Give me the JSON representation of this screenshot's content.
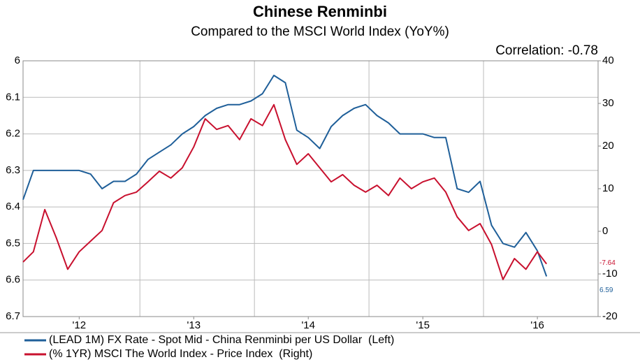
{
  "chart_data": {
    "type": "line",
    "title": "Chinese Renminbi",
    "subtitle": "Compared to the MSCI World Index (YoY%)",
    "annotation": "Correlation: -0.78",
    "x": [
      2011.51,
      2011.6,
      2011.7,
      2011.8,
      2011.9,
      2012.0,
      2012.1,
      2012.2,
      2012.3,
      2012.4,
      2012.5,
      2012.6,
      2012.7,
      2012.8,
      2012.9,
      2013.0,
      2013.1,
      2013.2,
      2013.3,
      2013.4,
      2013.5,
      2013.6,
      2013.7,
      2013.8,
      2013.9,
      2014.0,
      2014.1,
      2014.2,
      2014.3,
      2014.4,
      2014.5,
      2014.6,
      2014.7,
      2014.8,
      2014.9,
      2015.0,
      2015.1,
      2015.2,
      2015.3,
      2015.4,
      2015.5,
      2015.6,
      2015.7,
      2015.8,
      2015.9,
      2016.0,
      2016.08
    ],
    "xlim": [
      2011.51,
      2016.53
    ],
    "xticks": [
      {
        "value": 2012,
        "label": "'12"
      },
      {
        "value": 2013,
        "label": "'13"
      },
      {
        "value": 2014,
        "label": "'14"
      },
      {
        "value": 2015,
        "label": "'15"
      },
      {
        "value": 2016,
        "label": "'16"
      }
    ],
    "ylim": [
      6.7,
      6
    ],
    "yticks": [
      6,
      6.1,
      6.2,
      6.3,
      6.4,
      6.5,
      6.6,
      6.7
    ],
    "y2lim": [
      -20,
      40
    ],
    "y2ticks": [
      40,
      30,
      20,
      10,
      0,
      -10,
      -20
    ],
    "grid": true,
    "legend": "bottom",
    "series": [
      {
        "name": "(LEAD 1M) FX Rate - Spot Mid - China Renminbi per US Dollar  (Left)",
        "color": "#1f5f99",
        "end_label": "6.59",
        "values": [
          6.38,
          6.3,
          6.3,
          6.3,
          6.3,
          6.3,
          6.31,
          6.35,
          6.33,
          6.33,
          6.31,
          6.27,
          6.25,
          6.23,
          6.2,
          6.18,
          6.15,
          6.13,
          6.12,
          6.12,
          6.11,
          6.09,
          6.04,
          6.06,
          6.19,
          6.21,
          6.24,
          6.18,
          6.15,
          6.13,
          6.12,
          6.15,
          6.17,
          6.2,
          6.2,
          6.2,
          6.21,
          6.21,
          6.35,
          6.36,
          6.33,
          6.45,
          6.5,
          6.51,
          6.47,
          6.52,
          6.59
        ]
      },
      {
        "name": "(% 1YR) MSCI The World Index - Price Index  (Right)",
        "color": "#c8102e",
        "axis": "y2",
        "end_label": "-7.64",
        "values": [
          -7.2,
          -4.8,
          5.1,
          -1.5,
          -8.9,
          -4.8,
          -2.3,
          0.2,
          6.7,
          8.4,
          9.2,
          11.6,
          14.1,
          12.5,
          14.9,
          19.8,
          26.4,
          23.9,
          24.8,
          21.5,
          26.4,
          24.8,
          29.7,
          21.5,
          15.7,
          18.2,
          14.9,
          11.6,
          13.3,
          10.8,
          9.2,
          10.8,
          8.4,
          12.5,
          10.0,
          11.6,
          12.5,
          9.2,
          3.4,
          0.2,
          1.8,
          -3.1,
          -11.3,
          -6.4,
          -8.9,
          -4.8,
          -7.64
        ]
      }
    ]
  }
}
